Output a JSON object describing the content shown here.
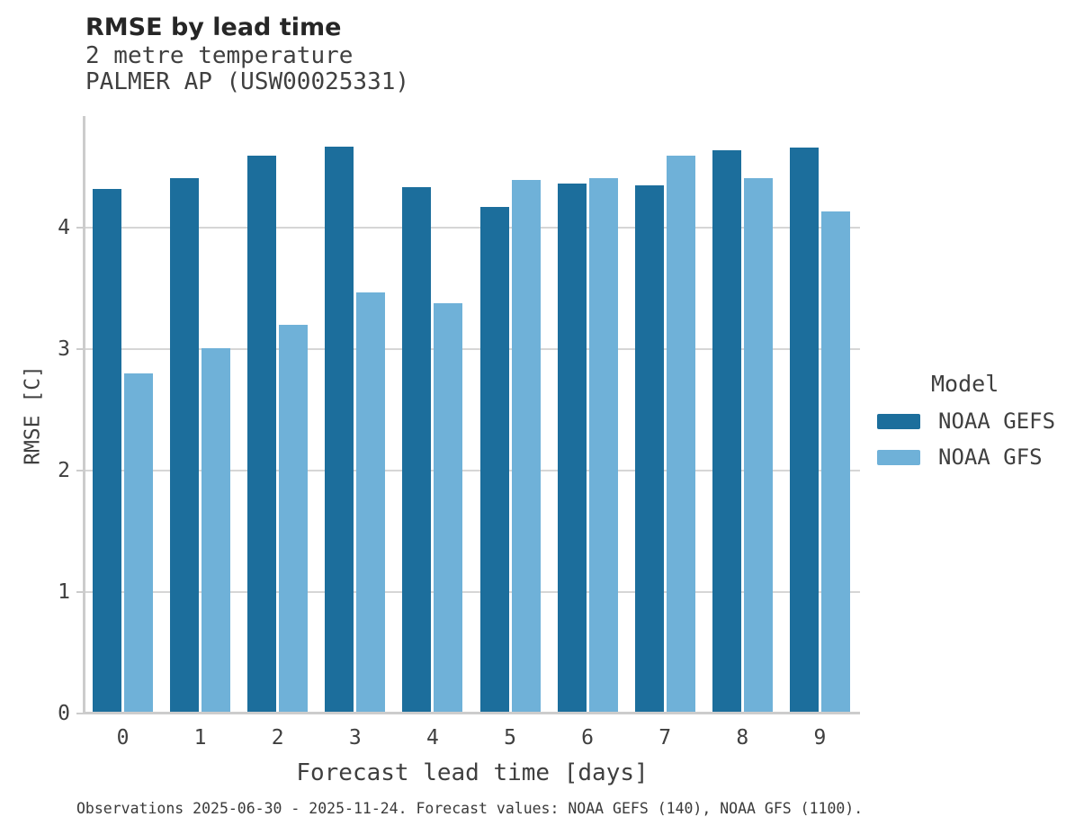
{
  "chart_data": {
    "type": "bar",
    "title": "RMSE by lead time",
    "subtitle": [
      "2 metre temperature",
      "PALMER AP (USW00025331)"
    ],
    "xlabel": "Forecast lead time [days]",
    "ylabel": "RMSE [C]",
    "categories": [
      "0",
      "1",
      "2",
      "3",
      "4",
      "5",
      "6",
      "7",
      "8",
      "9"
    ],
    "series": [
      {
        "name": "NOAA GEFS",
        "color": "#1C6E9C",
        "values": [
          4.32,
          4.41,
          4.59,
          4.67,
          4.33,
          4.17,
          4.36,
          4.35,
          4.64,
          4.66
        ]
      },
      {
        "name": "NOAA GFS",
        "color": "#6FB1D8",
        "values": [
          2.8,
          3.01,
          3.2,
          3.47,
          3.38,
          4.39,
          4.41,
          4.59,
          4.41,
          4.13
        ]
      }
    ],
    "ylim": [
      0,
      4.92
    ],
    "yticks": [
      0,
      1,
      2,
      3,
      4
    ],
    "grid": "horizontal",
    "legend_title": "Model",
    "legend_position": "right",
    "caption": "Observations 2025-06-30 - 2025-11-24. Forecast values: NOAA GEFS (140), NOAA GFS (1100)."
  },
  "style_colors": {
    "grid": "#d6d6d6",
    "spine": "#cccccc",
    "title_text": "#262626",
    "body_text": "#3f3f3f"
  }
}
